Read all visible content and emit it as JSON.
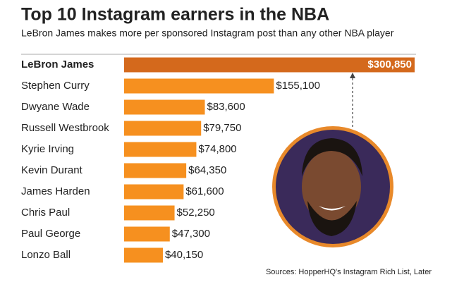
{
  "chart_data": {
    "type": "bar",
    "orientation": "horizontal",
    "title": "Top 10 Instagram earners in the NBA",
    "subtitle": "LeBron James makes more per sponsored Instagram post than any other NBA player",
    "source": "Sources: HopperHQ's Instagram Rich List, Later",
    "categories": [
      "LeBron James",
      "Stephen Curry",
      "Dwyane Wade",
      "Russell Westbrook",
      "Kyrie Irving",
      "Kevin Durant",
      "James Harden",
      "Chris Paul",
      "Paul George",
      "Lonzo Ball"
    ],
    "values": [
      300850,
      155100,
      83600,
      79750,
      74800,
      64350,
      61600,
      52250,
      47300,
      40150
    ],
    "value_labels": [
      "$300,850",
      "$155,100",
      "$83,600",
      "$79,750",
      "$74,800",
      "$64,350",
      "$61,600",
      "$52,250",
      "$47,300",
      "$40,150"
    ],
    "colors": [
      "#d4691c",
      "#f6901f",
      "#f6901f",
      "#f6901f",
      "#f6901f",
      "#f6901f",
      "#f6901f",
      "#f6901f",
      "#f6901f",
      "#f6901f"
    ]
  }
}
